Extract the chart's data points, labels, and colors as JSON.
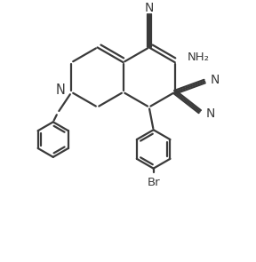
{
  "background": "#ffffff",
  "line_color": "#3a3a3a",
  "line_width": 1.6,
  "font_size": 9.5,
  "figsize": [
    2.88,
    2.95
  ],
  "dpi": 100,
  "atoms": {
    "N_top": "N",
    "NH2": "NH₂",
    "N_cn2": "N",
    "N_cn3": "N",
    "N_ring": "N",
    "Br": "Br"
  }
}
